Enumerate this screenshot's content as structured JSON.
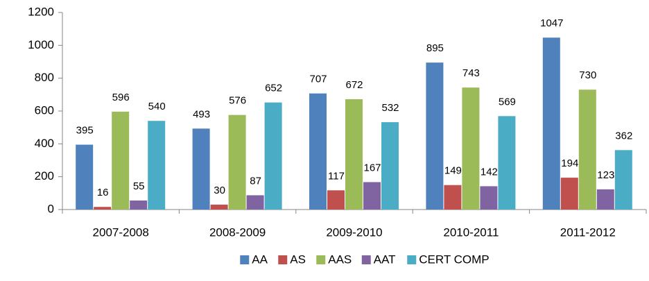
{
  "chart_data": {
    "type": "bar",
    "categories": [
      "2007-2008",
      "2008-2009",
      "2009-2010",
      "2010-2011",
      "2011-2012"
    ],
    "series": [
      {
        "name": "AA",
        "color": "#4f81bd",
        "values": [
          395,
          493,
          707,
          895,
          1047
        ]
      },
      {
        "name": "AS",
        "color": "#c0504d",
        "values": [
          16,
          30,
          117,
          149,
          194
        ]
      },
      {
        "name": "AAS",
        "color": "#9bbb59",
        "values": [
          596,
          576,
          672,
          743,
          730
        ]
      },
      {
        "name": "AAT",
        "color": "#8064a2",
        "values": [
          55,
          87,
          167,
          142,
          123
        ]
      },
      {
        "name": "CERT COMP",
        "color": "#4bacc6",
        "values": [
          540,
          652,
          532,
          569,
          362
        ]
      }
    ],
    "ylim": [
      0,
      1200
    ],
    "yticks": [
      0,
      200,
      400,
      600,
      800,
      1000,
      1200
    ],
    "grid": false,
    "legend": "bottom"
  }
}
